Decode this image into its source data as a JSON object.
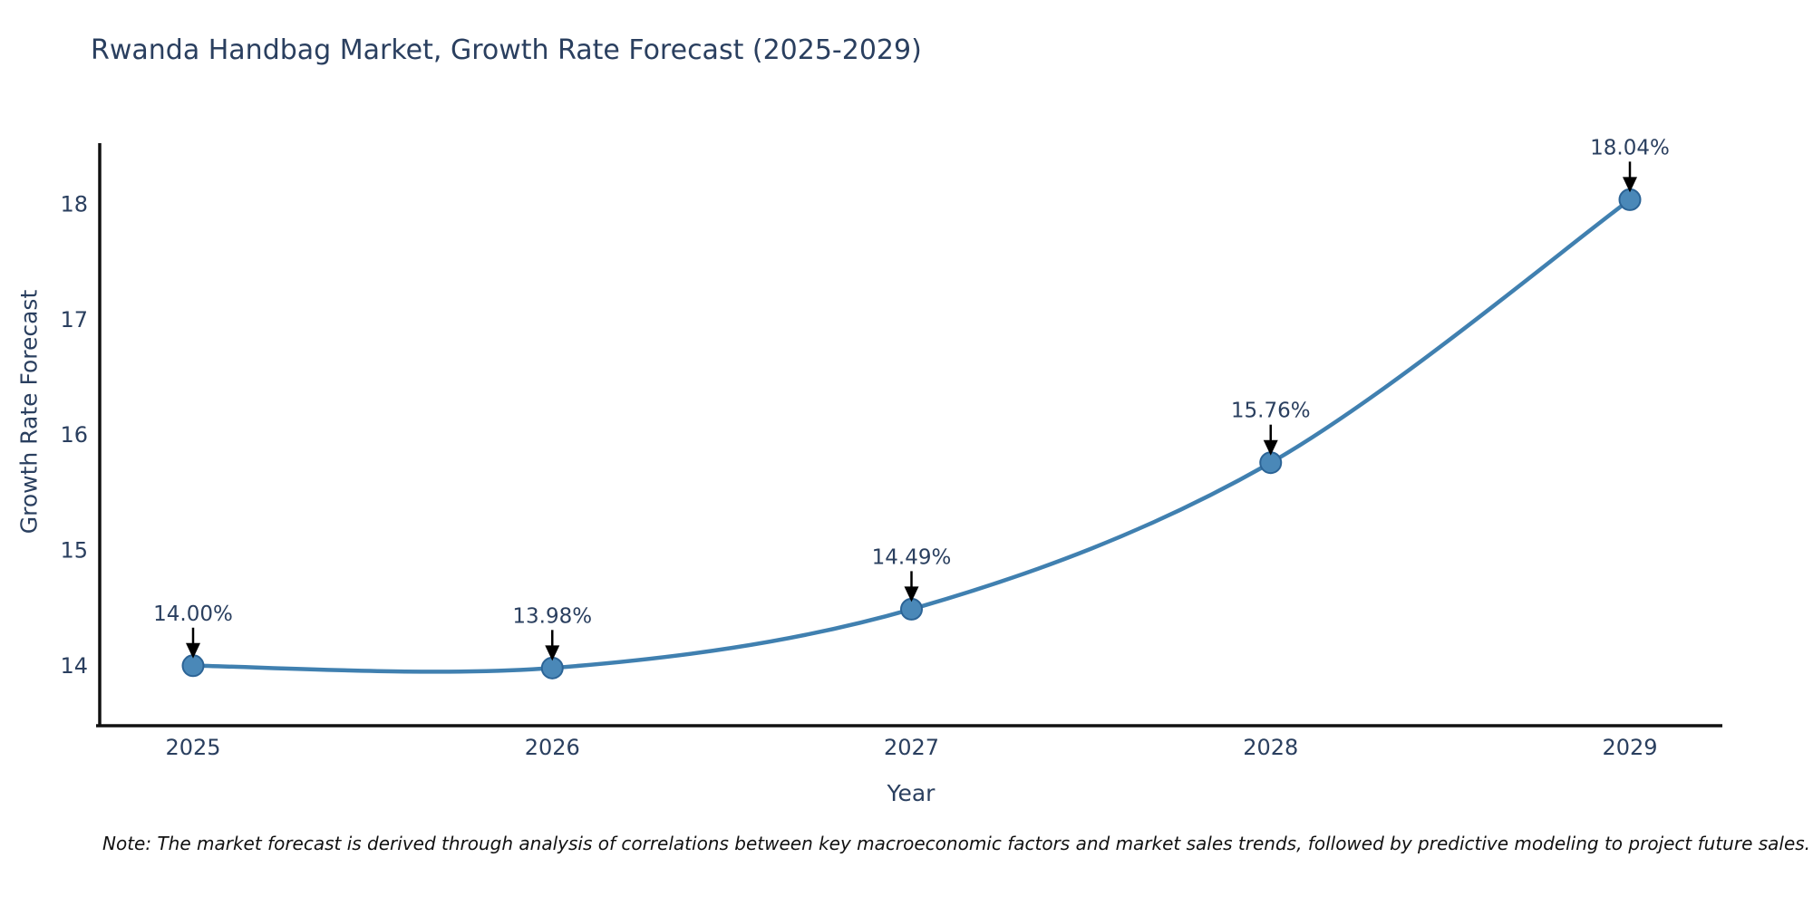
{
  "chart_data": {
    "type": "line",
    "title": "Rwanda Handbag Market, Growth Rate Forecast (2025-2029)",
    "xlabel": "Year",
    "ylabel": "Growth Rate Forecast",
    "categories": [
      "2025",
      "2026",
      "2027",
      "2028",
      "2029"
    ],
    "series": [
      {
        "name": "Growth Rate Forecast",
        "values": [
          14.0,
          13.98,
          14.49,
          15.76,
          18.04
        ]
      }
    ],
    "point_labels": [
      "14.00%",
      "13.98%",
      "14.49%",
      "15.76%",
      "18.04%"
    ],
    "y_ticks": [
      14,
      15,
      16,
      17,
      18
    ],
    "ylim": [
      13.48,
      18.53
    ],
    "grid": false,
    "legend_position": "none",
    "line_color": "#4080b0",
    "marker_fill_color": "#4a88b8",
    "marker_edge_color": "#2c6496",
    "axis_color": "#111111",
    "text_color": "#2a3f5f",
    "annotation_arrow_color": "#000000"
  },
  "note": "Note: The market forecast is derived through analysis of correlations between key macroeconomic factors and market sales trends, followed by predictive modeling to project future sales."
}
